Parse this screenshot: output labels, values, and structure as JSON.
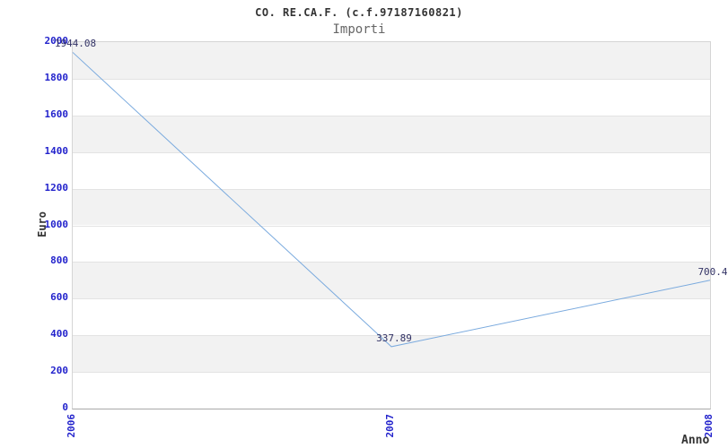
{
  "chart_data": {
    "type": "line",
    "title": "CO. RE.CA.F. (c.f.97187160821)",
    "subtitle": "Importi",
    "xlabel": "Anno",
    "ylabel": "Euro",
    "categories": [
      "2006",
      "2007",
      "2008"
    ],
    "series": [
      {
        "name": "Importi",
        "values": [
          1944.08,
          337.89,
          700.4
        ]
      }
    ],
    "point_labels": [
      "1944.08",
      "337.89",
      "700.4"
    ],
    "ylim": [
      0,
      2000
    ],
    "ytick_step": 200,
    "ytick_labels": [
      "0",
      "200",
      "400",
      "600",
      "800",
      "1000",
      "1200",
      "1400",
      "1600",
      "1800",
      "2000"
    ],
    "grid": true,
    "legend": "none",
    "colors": {
      "line": "#7aaade",
      "tick_label": "#2323cc",
      "value_label": "#333366",
      "band": "#f2f2f2",
      "band_alt": "#ffffff",
      "gridline": "#e3e3e3",
      "plot_border": "#d5d5d5",
      "axis_line": "#a8a8a8",
      "title": "#333333",
      "subtitle": "#666666"
    }
  }
}
